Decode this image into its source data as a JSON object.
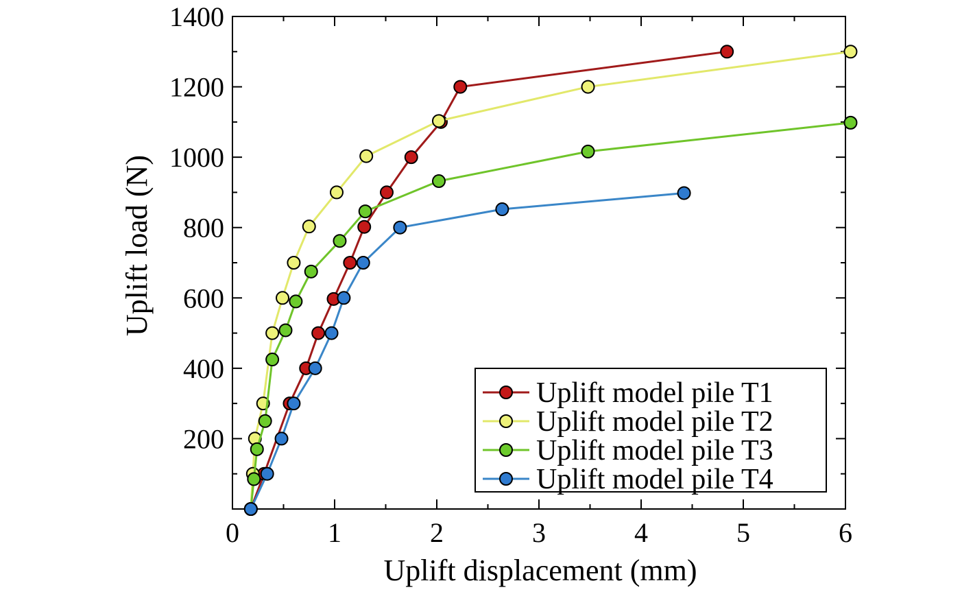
{
  "chart_data": {
    "type": "line",
    "title": "",
    "xlabel": "Uplift displacement (mm)",
    "ylabel": "Uplift load (N)",
    "xlim": [
      0,
      6
    ],
    "ylim": [
      0,
      1400
    ],
    "x_ticks": [
      "0",
      "1",
      "2",
      "3",
      "4",
      "5",
      "6"
    ],
    "y_ticks": [
      "200",
      "400",
      "600",
      "800",
      "1000",
      "1200",
      "1400"
    ],
    "x_tick_values": [
      0,
      1,
      2,
      3,
      4,
      5,
      6
    ],
    "y_tick_values": [
      200,
      400,
      600,
      800,
      1000,
      1200,
      1400
    ],
    "grid": false,
    "legend_position": "bottom-right",
    "series": [
      {
        "name": "Uplift model pile T1",
        "line_color": "#a01a1a",
        "marker_color": "#c41919",
        "points": [
          [
            0.18,
            0
          ],
          [
            0.31,
            100
          ],
          [
            0.56,
            300
          ],
          [
            0.72,
            400
          ],
          [
            0.84,
            500
          ],
          [
            0.99,
            597
          ],
          [
            1.15,
            700
          ],
          [
            1.29,
            802
          ],
          [
            1.51,
            900
          ],
          [
            1.75,
            1000
          ],
          [
            2.04,
            1100
          ],
          [
            2.23,
            1200
          ],
          [
            4.84,
            1300
          ]
        ]
      },
      {
        "name": "Uplift model pile T2",
        "line_color": "#e2e86a",
        "marker_color": "#eef27a",
        "points": [
          [
            0.18,
            0
          ],
          [
            0.2,
            100
          ],
          [
            0.22,
            200
          ],
          [
            0.3,
            300
          ],
          [
            0.39,
            500
          ],
          [
            0.49,
            600
          ],
          [
            0.6,
            700
          ],
          [
            0.75,
            803
          ],
          [
            1.02,
            900
          ],
          [
            1.31,
            1003
          ],
          [
            2.02,
            1103
          ],
          [
            3.48,
            1200
          ],
          [
            6.05,
            1300
          ]
        ]
      },
      {
        "name": "Uplift model pile T3",
        "line_color": "#6fc42a",
        "marker_color": "#6ccb2c",
        "points": [
          [
            0.18,
            0
          ],
          [
            0.21,
            85
          ],
          [
            0.24,
            170
          ],
          [
            0.32,
            250
          ],
          [
            0.39,
            425
          ],
          [
            0.52,
            508
          ],
          [
            0.62,
            590
          ],
          [
            0.77,
            675
          ],
          [
            1.05,
            762
          ],
          [
            1.3,
            846
          ],
          [
            2.02,
            932
          ],
          [
            3.48,
            1016
          ],
          [
            6.05,
            1098
          ]
        ]
      },
      {
        "name": "Uplift model pile T4",
        "line_color": "#3a86c8",
        "marker_color": "#2f7bd0",
        "points": [
          [
            0.18,
            0
          ],
          [
            0.34,
            100
          ],
          [
            0.48,
            200
          ],
          [
            0.6,
            300
          ],
          [
            0.81,
            400
          ],
          [
            0.97,
            500
          ],
          [
            1.09,
            600
          ],
          [
            1.28,
            700
          ],
          [
            1.64,
            800
          ],
          [
            2.64,
            852
          ],
          [
            4.42,
            898
          ]
        ]
      }
    ]
  }
}
